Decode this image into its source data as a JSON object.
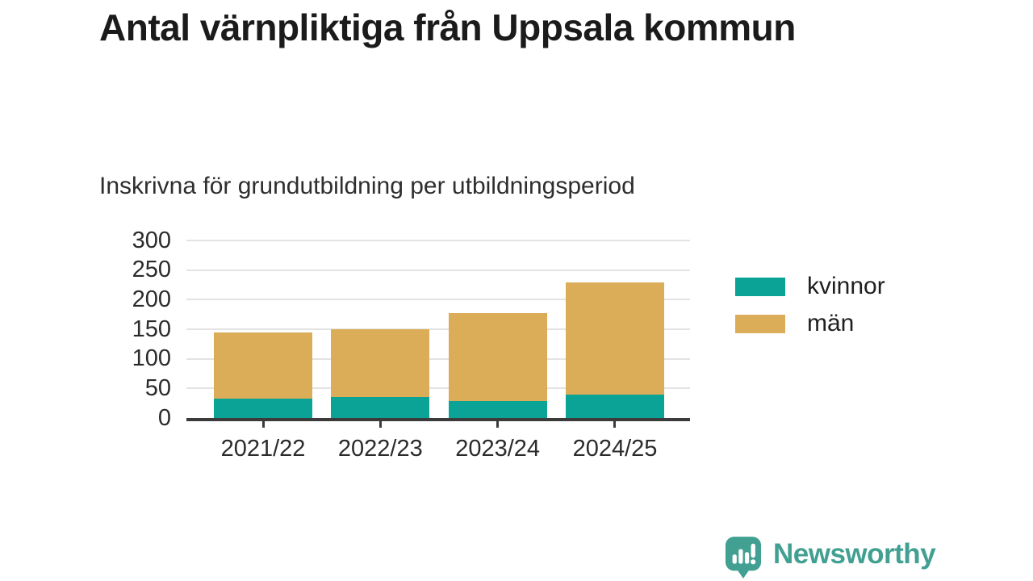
{
  "header": {
    "title": "Antal värnpliktiga från Uppsala kommun",
    "subtitle": "Inskrivna för grundutbildning per utbildningsperiod"
  },
  "chart_data": {
    "type": "bar",
    "subtype": "stacked-vertical",
    "title": "Antal värnpliktiga från Uppsala kommun",
    "subtitle": "Inskrivna för grundutbildning per utbildningsperiod",
    "categories": [
      "2021/22",
      "2022/23",
      "2023/24",
      "2024/25"
    ],
    "series": [
      {
        "name": "kvinnor",
        "color": "#0aa396",
        "values": [
          33,
          36,
          28,
          40
        ]
      },
      {
        "name": "män",
        "color": "#dcad58",
        "values": [
          112,
          114,
          149,
          189
        ]
      }
    ],
    "stacked_totals": [
      145,
      150,
      177,
      229
    ],
    "xlabel": "",
    "ylabel": "",
    "ylim": [
      0,
      300
    ],
    "yticks": [
      0,
      50,
      100,
      150,
      200,
      250,
      300
    ],
    "grid": "horizontal",
    "legend_position": "right"
  },
  "colors": {
    "kvinnor": "#0aa396",
    "man": "#dcad58",
    "axis": "#3b3b3b",
    "gridline": "#e3e3e3",
    "text": "#2b2b2b",
    "title_text": "#1b1b1b",
    "brand": "#41a092"
  },
  "footer": {
    "brand": "Newsworthy"
  }
}
